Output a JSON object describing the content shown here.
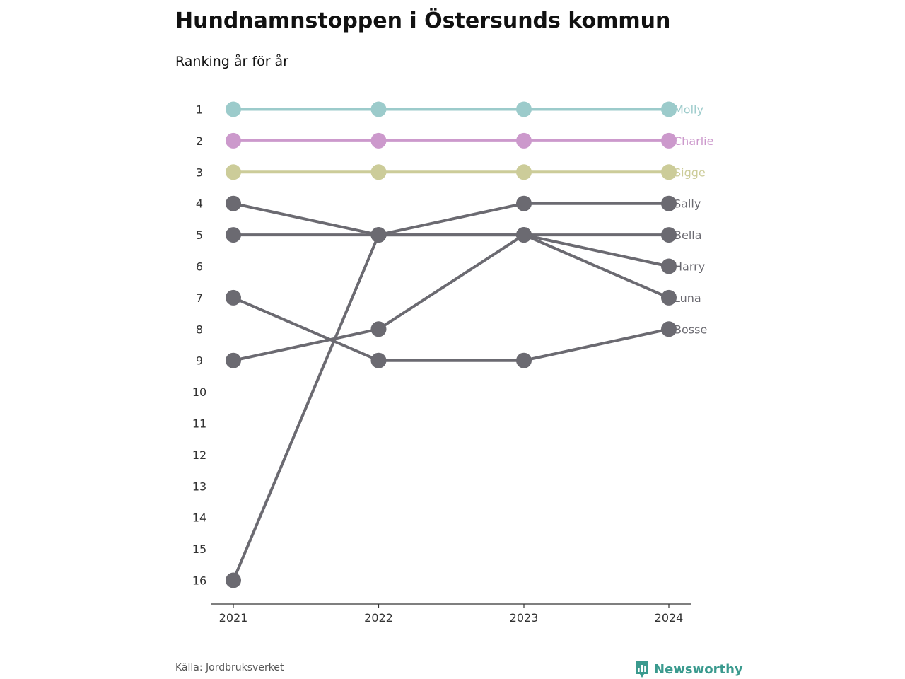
{
  "header": {
    "title": "Hundnamnstoppen i Östersunds kommun",
    "subtitle": "Ranking år för år"
  },
  "footer": {
    "source": "Källa: Jordbruksverket",
    "brand": "Newsworthy",
    "brand_color": "#3a9a8e"
  },
  "chart_data": {
    "type": "line",
    "title": "Hundnamnstoppen i Östersunds kommun",
    "subtitle": "Ranking år för år",
    "x": [
      "2021",
      "2022",
      "2023",
      "2024"
    ],
    "y_ticks": [
      "1",
      "2",
      "3",
      "4",
      "5",
      "6",
      "7",
      "8",
      "9",
      "10",
      "11",
      "12",
      "13",
      "14",
      "15",
      "16"
    ],
    "ylim": [
      1,
      16
    ],
    "y_inverted": true,
    "grid": false,
    "series": [
      {
        "name": "Molly",
        "values": [
          1,
          1,
          1,
          1
        ],
        "color": "#9ccbcb"
      },
      {
        "name": "Charlie",
        "values": [
          2,
          2,
          2,
          2
        ],
        "color": "#cc99cc"
      },
      {
        "name": "Sigge",
        "values": [
          3,
          3,
          3,
          3
        ],
        "color": "#cccc99"
      },
      {
        "name": "Sally",
        "values": [
          16,
          5,
          4,
          4
        ],
        "color": "#6b6a71"
      },
      {
        "name": "Bella",
        "values": [
          5,
          5,
          5,
          5
        ],
        "color": "#6b6a71"
      },
      {
        "name": "Harry",
        "values": [
          4,
          5,
          5,
          6
        ],
        "color": "#6b6a71"
      },
      {
        "name": "Luna",
        "values": [
          9,
          8,
          5,
          7
        ],
        "color": "#6b6a71"
      },
      {
        "name": "Bosse",
        "values": [
          7,
          9,
          9,
          8
        ],
        "color": "#6b6a71"
      }
    ]
  }
}
